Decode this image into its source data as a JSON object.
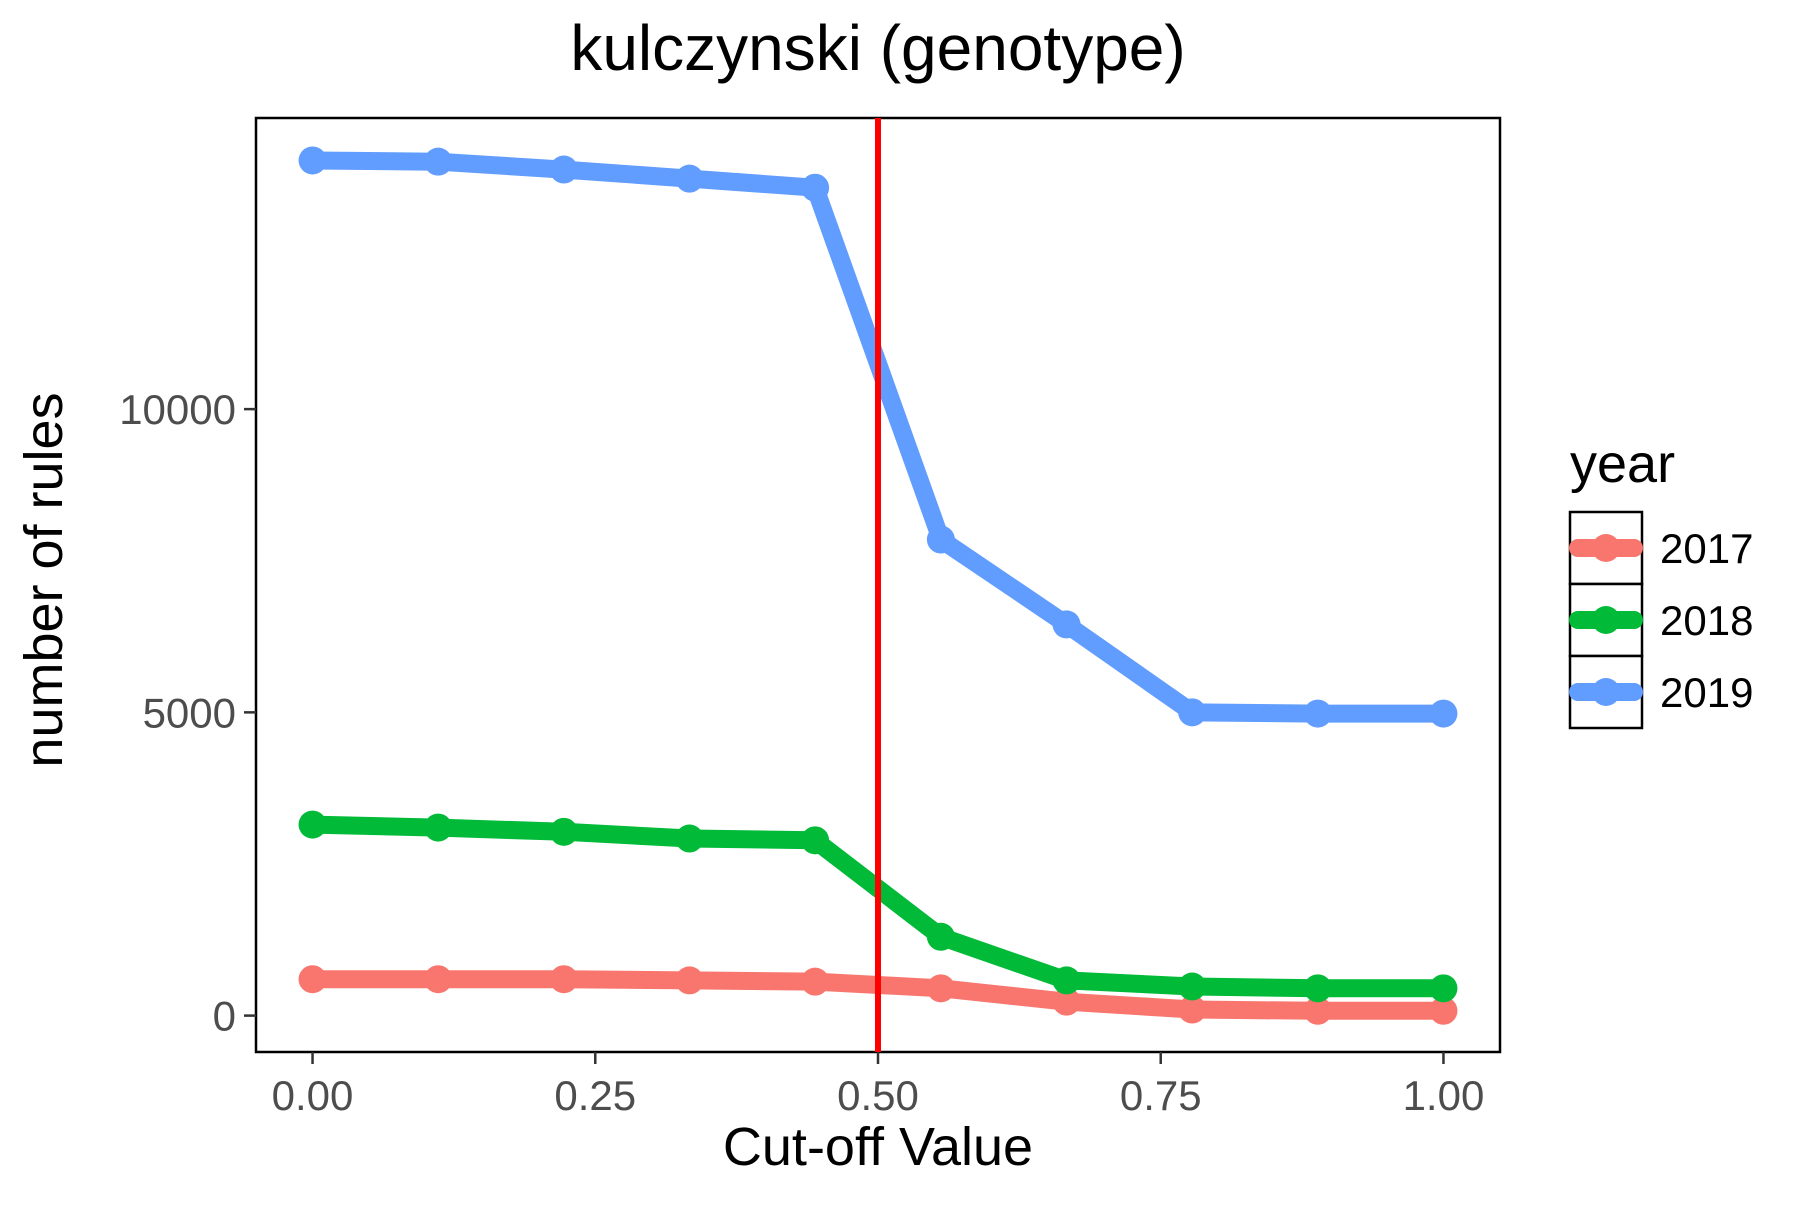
{
  "chart_data": {
    "type": "line",
    "title": "kulczynski (genotype)",
    "xlabel": "Cut-off Value",
    "ylabel": "number of rules",
    "x": [
      0.0,
      0.1111,
      0.2222,
      0.3333,
      0.4444,
      0.5556,
      0.6667,
      0.7778,
      0.8889,
      1.0
    ],
    "xlim": [
      -0.05,
      1.05
    ],
    "ylim": [
      -600,
      14800
    ],
    "x_ticks": [
      0.0,
      0.25,
      0.5,
      0.75,
      1.0
    ],
    "x_tick_labels": [
      "0.00",
      "0.25",
      "0.50",
      "0.75",
      "1.00"
    ],
    "y_ticks": [
      0,
      5000,
      10000
    ],
    "y_tick_labels": [
      "0",
      "5000",
      "10000"
    ],
    "grid": false,
    "legend": {
      "title": "year",
      "placement": "right"
    },
    "series": [
      {
        "name": "2017",
        "color": "#F8766D",
        "values": [
          600,
          600,
          600,
          580,
          560,
          450,
          230,
          100,
          80,
          80
        ]
      },
      {
        "name": "2018",
        "color": "#00BA38",
        "values": [
          3150,
          3100,
          3030,
          2920,
          2890,
          1300,
          580,
          480,
          450,
          450
        ]
      },
      {
        "name": "2019",
        "color": "#619CFF",
        "values": [
          14100,
          14080,
          13950,
          13800,
          13650,
          7850,
          6450,
          5000,
          4980,
          4980
        ]
      }
    ],
    "vertical_line": {
      "x": 0.5,
      "color": "#FF0000"
    }
  }
}
